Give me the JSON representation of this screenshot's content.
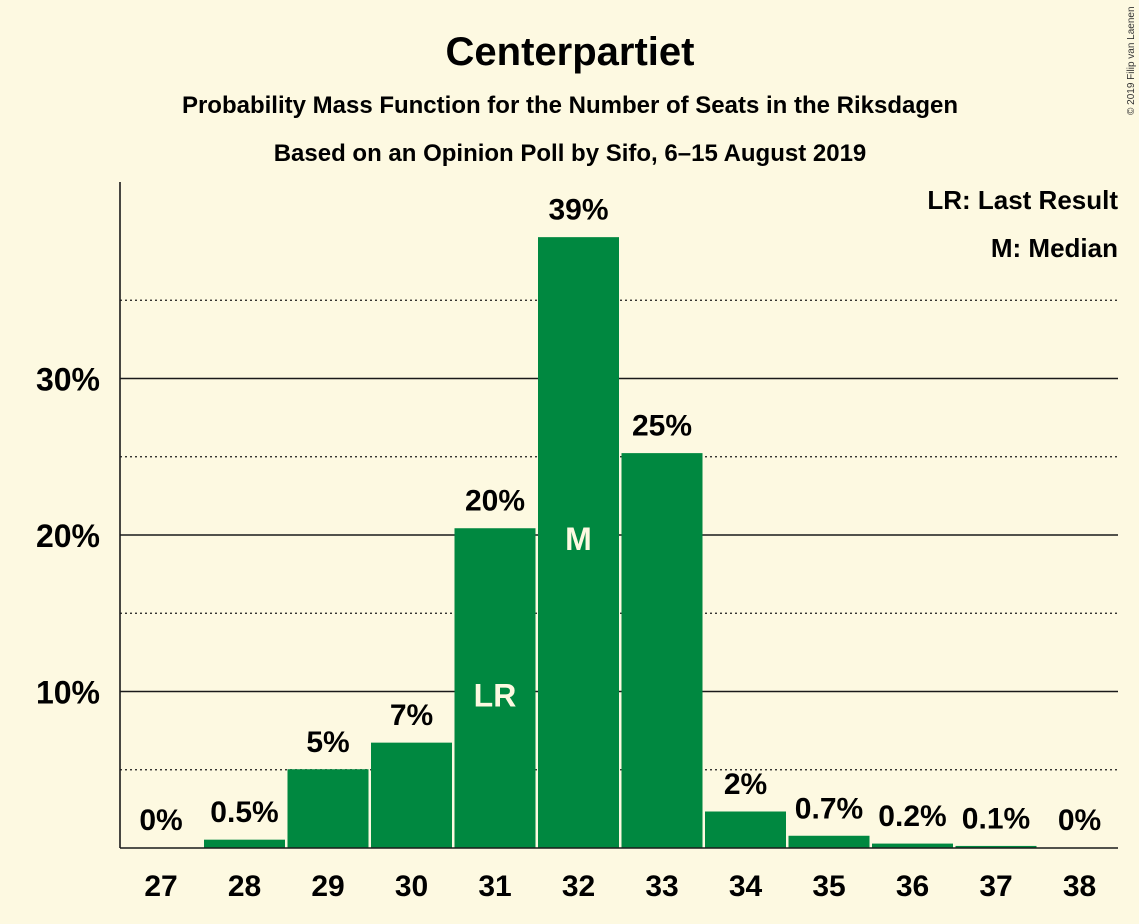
{
  "chart_data": {
    "type": "bar",
    "title": "Centerpartiet",
    "subtitle": "Probability Mass Function for the Number of Seats in the Riksdagen",
    "subtitle2": "Based on an Opinion Poll by Sifo, 6–15 August 2019",
    "categories": [
      "27",
      "28",
      "29",
      "30",
      "31",
      "32",
      "33",
      "34",
      "35",
      "36",
      "37",
      "38"
    ],
    "values": [
      0,
      0.5,
      5,
      6.7,
      20.4,
      39,
      25.2,
      2.3,
      0.75,
      0.25,
      0.1,
      0
    ],
    "value_labels": [
      "0%",
      "0.5%",
      "5%",
      "7%",
      "20%",
      "39%",
      "25%",
      "2%",
      "0.7%",
      "0.2%",
      "0.1%",
      "0%"
    ],
    "inner_labels": {
      "31": "LR",
      "32": "M"
    },
    "ylim": [
      0,
      42.5
    ],
    "yticks": [
      10,
      20,
      30
    ],
    "ytick_labels": [
      "10%",
      "20%",
      "30%"
    ],
    "minor_gridlines": [
      5,
      15,
      25,
      35
    ],
    "legend": [
      "LR: Last Result",
      "M: Median"
    ],
    "legend_position": "top-right",
    "bar_color": "#008840",
    "copyright": "© 2019 Filip van Laenen"
  }
}
